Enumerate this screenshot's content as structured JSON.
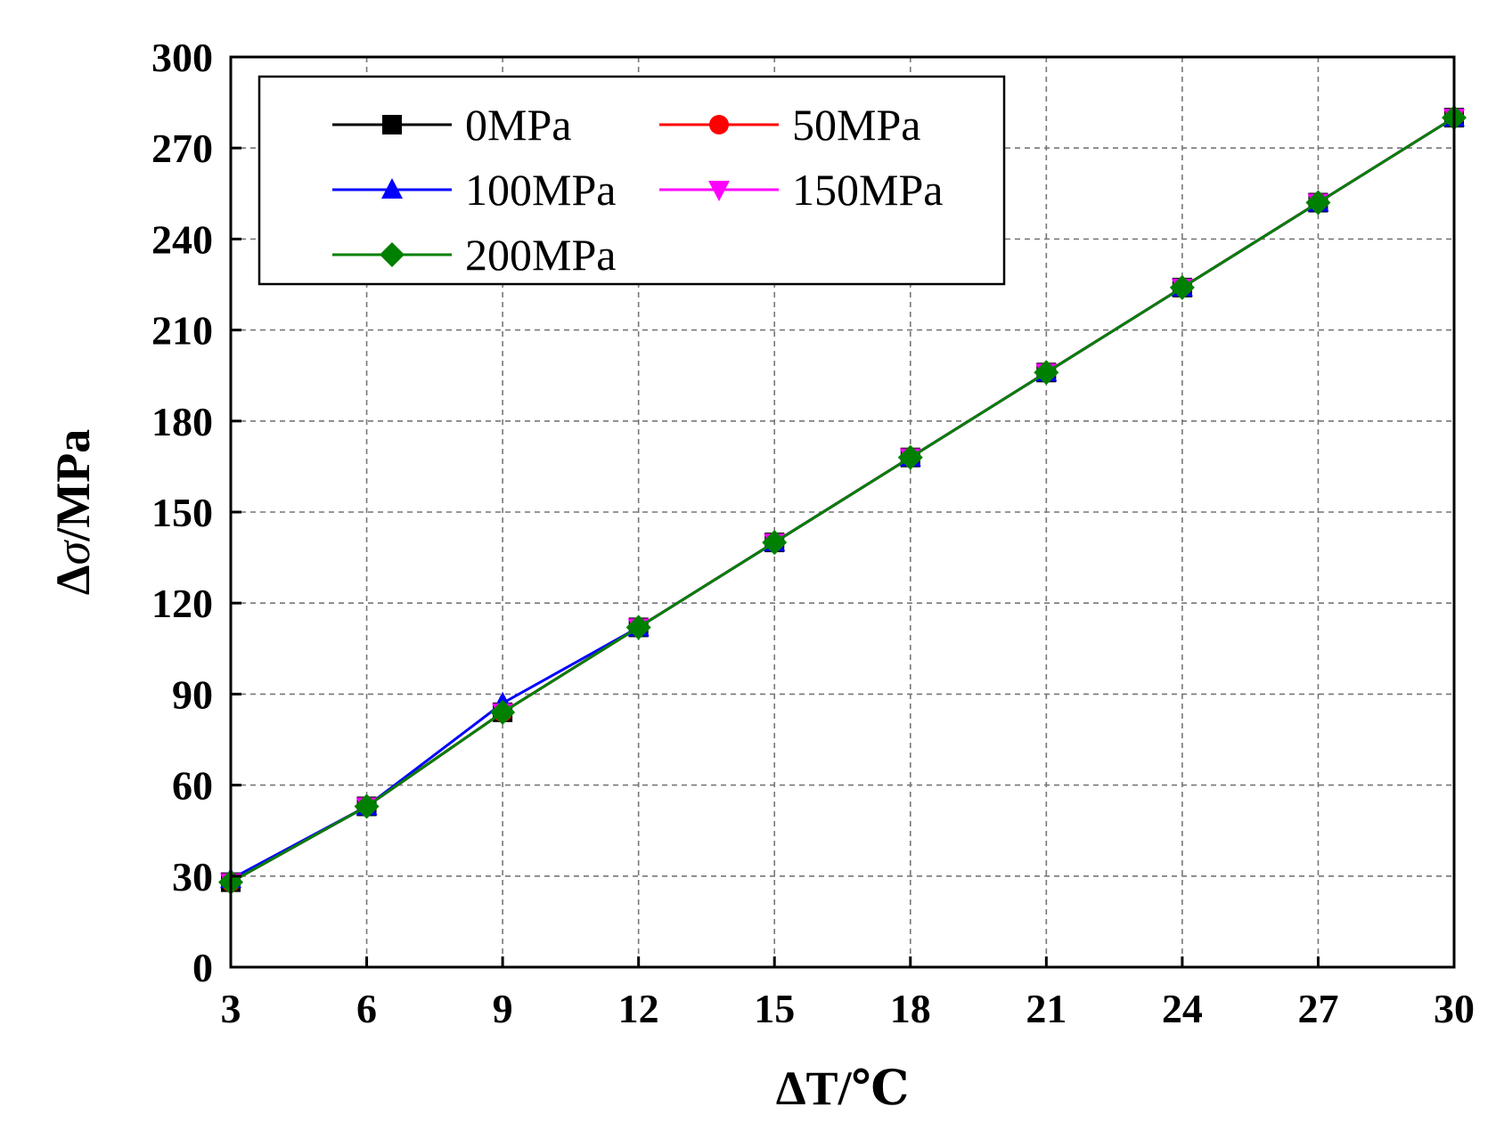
{
  "chart_data": {
    "type": "line",
    "title": "",
    "xlabel": "ΔT/℃",
    "ylabel_prefix": "Δ",
    "ylabel_symbol": "σ",
    "ylabel_suffix": "/MPa",
    "xlim": [
      3,
      30
    ],
    "ylim": [
      0,
      300
    ],
    "xticks": [
      3,
      6,
      9,
      12,
      15,
      18,
      21,
      24,
      27,
      30
    ],
    "xtick_labels": [
      "3",
      "6",
      "9",
      "12",
      "15",
      "18",
      "21",
      "24",
      "27",
      "30"
    ],
    "yticks": [
      0,
      30,
      60,
      90,
      120,
      150,
      180,
      210,
      240,
      270,
      300
    ],
    "ytick_labels": [
      "0",
      "30",
      "60",
      "90",
      "120",
      "150",
      "180",
      "210",
      "240",
      "270",
      "300"
    ],
    "grid": true,
    "legend_position": "top-left",
    "x": [
      3,
      6,
      9,
      12,
      15,
      18,
      21,
      24,
      27,
      30
    ],
    "series": [
      {
        "name": "0MPa",
        "color": "#000000",
        "marker": "square",
        "values": [
          28,
          53,
          84,
          112,
          140,
          168,
          196,
          224,
          252,
          280
        ]
      },
      {
        "name": "50MPa",
        "color": "#ff0000",
        "marker": "circle",
        "values": [
          28,
          53,
          84,
          112,
          140,
          168,
          196,
          224,
          252,
          280
        ]
      },
      {
        "name": "100MPa",
        "color": "#0000ff",
        "marker": "triangle-up",
        "values": [
          29,
          53,
          87,
          112,
          140,
          168,
          196,
          224,
          252,
          280
        ]
      },
      {
        "name": "150MPa",
        "color": "#ff00ff",
        "marker": "triangle-down",
        "values": [
          28,
          53,
          84,
          112,
          140,
          168,
          196,
          224,
          252,
          280
        ]
      },
      {
        "name": "200MPa",
        "color": "#008000",
        "marker": "diamond",
        "values": [
          28,
          53,
          84,
          112,
          140,
          168,
          196,
          224,
          252,
          280
        ]
      }
    ]
  }
}
